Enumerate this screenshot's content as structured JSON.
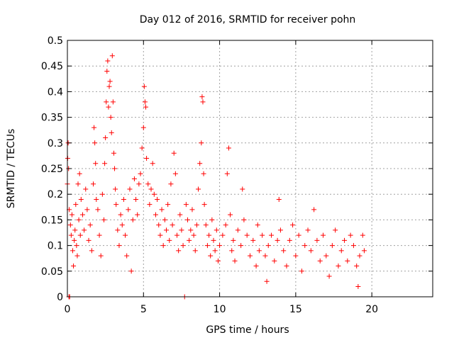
{
  "chart_data": {
    "type": "scatter",
    "title": "Day 012 of 2016, SRMTID for receiver pohn",
    "xlabel": "GPS time / hours",
    "ylabel": "SRMTID / TECUs",
    "xlim": [
      0,
      24
    ],
    "ylim": [
      0,
      0.5
    ],
    "x_ticks": [
      0,
      5,
      10,
      15,
      20
    ],
    "x_tick_labels": [
      "0",
      "5",
      "10",
      "15",
      "20"
    ],
    "y_ticks": [
      0,
      0.05,
      0.1,
      0.15,
      0.2,
      0.25,
      0.3,
      0.35,
      0.4,
      0.45,
      0.5
    ],
    "y_tick_labels": [
      "0",
      "0.05",
      "0.1",
      "0.15",
      "0.2",
      "0.25",
      "0.3",
      "0.35",
      "0.4",
      "0.45",
      "0.5"
    ],
    "grid": true,
    "marker": "+",
    "color": "#ff0000",
    "series": [
      {
        "name": "SRMTID",
        "points": [
          [
            0.0,
            0.22
          ],
          [
            0.02,
            0.27
          ],
          [
            0.05,
            0.3
          ],
          [
            0.08,
            0.25
          ],
          [
            0.1,
            0.0
          ],
          [
            0.15,
            0.0
          ],
          [
            0.12,
            0.17
          ],
          [
            0.2,
            0.14
          ],
          [
            0.25,
            0.12
          ],
          [
            0.3,
            0.16
          ],
          [
            0.35,
            0.09
          ],
          [
            0.4,
            0.06
          ],
          [
            0.45,
            0.11
          ],
          [
            0.5,
            0.13
          ],
          [
            0.55,
            0.18
          ],
          [
            0.6,
            0.1
          ],
          [
            0.65,
            0.08
          ],
          [
            0.7,
            0.22
          ],
          [
            0.75,
            0.15
          ],
          [
            0.8,
            0.24
          ],
          [
            0.85,
            0.12
          ],
          [
            0.9,
            0.19
          ],
          [
            1.0,
            0.16
          ],
          [
            1.1,
            0.13
          ],
          [
            1.2,
            0.21
          ],
          [
            1.3,
            0.17
          ],
          [
            1.4,
            0.11
          ],
          [
            1.5,
            0.14
          ],
          [
            1.6,
            0.09
          ],
          [
            1.7,
            0.22
          ],
          [
            1.75,
            0.33
          ],
          [
            1.8,
            0.3
          ],
          [
            1.85,
            0.26
          ],
          [
            1.9,
            0.19
          ],
          [
            2.0,
            0.17
          ],
          [
            2.1,
            0.12
          ],
          [
            2.2,
            0.08
          ],
          [
            2.3,
            0.2
          ],
          [
            2.4,
            0.15
          ],
          [
            2.45,
            0.26
          ],
          [
            2.5,
            0.31
          ],
          [
            2.55,
            0.38
          ],
          [
            2.6,
            0.44
          ],
          [
            2.65,
            0.46
          ],
          [
            2.7,
            0.37
          ],
          [
            2.75,
            0.41
          ],
          [
            2.8,
            0.42
          ],
          [
            2.85,
            0.35
          ],
          [
            2.9,
            0.32
          ],
          [
            2.95,
            0.47
          ],
          [
            3.0,
            0.38
          ],
          [
            3.05,
            0.28
          ],
          [
            3.1,
            0.25
          ],
          [
            3.15,
            0.21
          ],
          [
            3.2,
            0.18
          ],
          [
            3.3,
            0.13
          ],
          [
            3.4,
            0.1
          ],
          [
            3.5,
            0.16
          ],
          [
            3.6,
            0.14
          ],
          [
            3.7,
            0.19
          ],
          [
            3.8,
            0.12
          ],
          [
            3.9,
            0.08
          ],
          [
            4.0,
            0.17
          ],
          [
            4.1,
            0.21
          ],
          [
            4.2,
            0.05
          ],
          [
            4.3,
            0.15
          ],
          [
            4.4,
            0.23
          ],
          [
            4.5,
            0.19
          ],
          [
            4.6,
            0.16
          ],
          [
            4.7,
            0.22
          ],
          [
            4.8,
            0.24
          ],
          [
            4.9,
            0.29
          ],
          [
            5.0,
            0.33
          ],
          [
            5.05,
            0.41
          ],
          [
            5.1,
            0.38
          ],
          [
            5.15,
            0.37
          ],
          [
            5.2,
            0.27
          ],
          [
            5.3,
            0.22
          ],
          [
            5.4,
            0.18
          ],
          [
            5.5,
            0.21
          ],
          [
            5.6,
            0.26
          ],
          [
            5.7,
            0.2
          ],
          [
            5.8,
            0.16
          ],
          [
            5.9,
            0.19
          ],
          [
            6.0,
            0.14
          ],
          [
            6.1,
            0.12
          ],
          [
            6.2,
            0.17
          ],
          [
            6.3,
            0.1
          ],
          [
            6.4,
            0.15
          ],
          [
            6.5,
            0.13
          ],
          [
            6.6,
            0.18
          ],
          [
            6.7,
            0.11
          ],
          [
            6.8,
            0.22
          ],
          [
            6.9,
            0.14
          ],
          [
            7.0,
            0.28
          ],
          [
            7.1,
            0.24
          ],
          [
            7.2,
            0.12
          ],
          [
            7.3,
            0.09
          ],
          [
            7.4,
            0.16
          ],
          [
            7.5,
            0.13
          ],
          [
            7.6,
            0.1
          ],
          [
            7.7,
            0.0
          ],
          [
            7.8,
            0.18
          ],
          [
            7.9,
            0.15
          ],
          [
            8.0,
            0.11
          ],
          [
            8.1,
            0.13
          ],
          [
            8.2,
            0.17
          ],
          [
            8.3,
            0.12
          ],
          [
            8.4,
            0.09
          ],
          [
            8.5,
            0.14
          ],
          [
            8.6,
            0.21
          ],
          [
            8.7,
            0.26
          ],
          [
            8.8,
            0.3
          ],
          [
            8.85,
            0.39
          ],
          [
            8.9,
            0.38
          ],
          [
            8.95,
            0.24
          ],
          [
            9.0,
            0.18
          ],
          [
            9.1,
            0.14
          ],
          [
            9.2,
            0.1
          ],
          [
            9.3,
            0.12
          ],
          [
            9.4,
            0.08
          ],
          [
            9.5,
            0.15
          ],
          [
            9.6,
            0.11
          ],
          [
            9.7,
            0.09
          ],
          [
            9.8,
            0.13
          ],
          [
            9.9,
            0.07
          ],
          [
            10.0,
            0.1
          ],
          [
            10.2,
            0.12
          ],
          [
            10.4,
            0.14
          ],
          [
            10.5,
            0.24
          ],
          [
            10.6,
            0.29
          ],
          [
            10.7,
            0.16
          ],
          [
            10.8,
            0.09
          ],
          [
            10.9,
            0.11
          ],
          [
            11.0,
            0.07
          ],
          [
            11.2,
            0.13
          ],
          [
            11.4,
            0.1
          ],
          [
            11.5,
            0.21
          ],
          [
            11.6,
            0.15
          ],
          [
            11.8,
            0.12
          ],
          [
            12.0,
            0.08
          ],
          [
            12.2,
            0.11
          ],
          [
            12.4,
            0.06
          ],
          [
            12.5,
            0.14
          ],
          [
            12.6,
            0.09
          ],
          [
            12.8,
            0.12
          ],
          [
            13.0,
            0.08
          ],
          [
            13.1,
            0.03
          ],
          [
            13.2,
            0.1
          ],
          [
            13.4,
            0.12
          ],
          [
            13.6,
            0.07
          ],
          [
            13.8,
            0.11
          ],
          [
            13.9,
            0.19
          ],
          [
            14.0,
            0.13
          ],
          [
            14.2,
            0.09
          ],
          [
            14.4,
            0.06
          ],
          [
            14.6,
            0.11
          ],
          [
            14.8,
            0.14
          ],
          [
            15.0,
            0.08
          ],
          [
            15.2,
            0.12
          ],
          [
            15.4,
            0.05
          ],
          [
            15.6,
            0.1
          ],
          [
            15.8,
            0.13
          ],
          [
            16.0,
            0.09
          ],
          [
            16.2,
            0.17
          ],
          [
            16.4,
            0.11
          ],
          [
            16.6,
            0.07
          ],
          [
            16.8,
            0.12
          ],
          [
            17.0,
            0.08
          ],
          [
            17.2,
            0.04
          ],
          [
            17.4,
            0.1
          ],
          [
            17.6,
            0.13
          ],
          [
            17.8,
            0.06
          ],
          [
            18.0,
            0.09
          ],
          [
            18.2,
            0.11
          ],
          [
            18.4,
            0.07
          ],
          [
            18.6,
            0.12
          ],
          [
            18.8,
            0.1
          ],
          [
            19.0,
            0.06
          ],
          [
            19.1,
            0.02
          ],
          [
            19.2,
            0.08
          ],
          [
            19.4,
            0.12
          ],
          [
            19.5,
            0.09
          ]
        ]
      }
    ]
  }
}
